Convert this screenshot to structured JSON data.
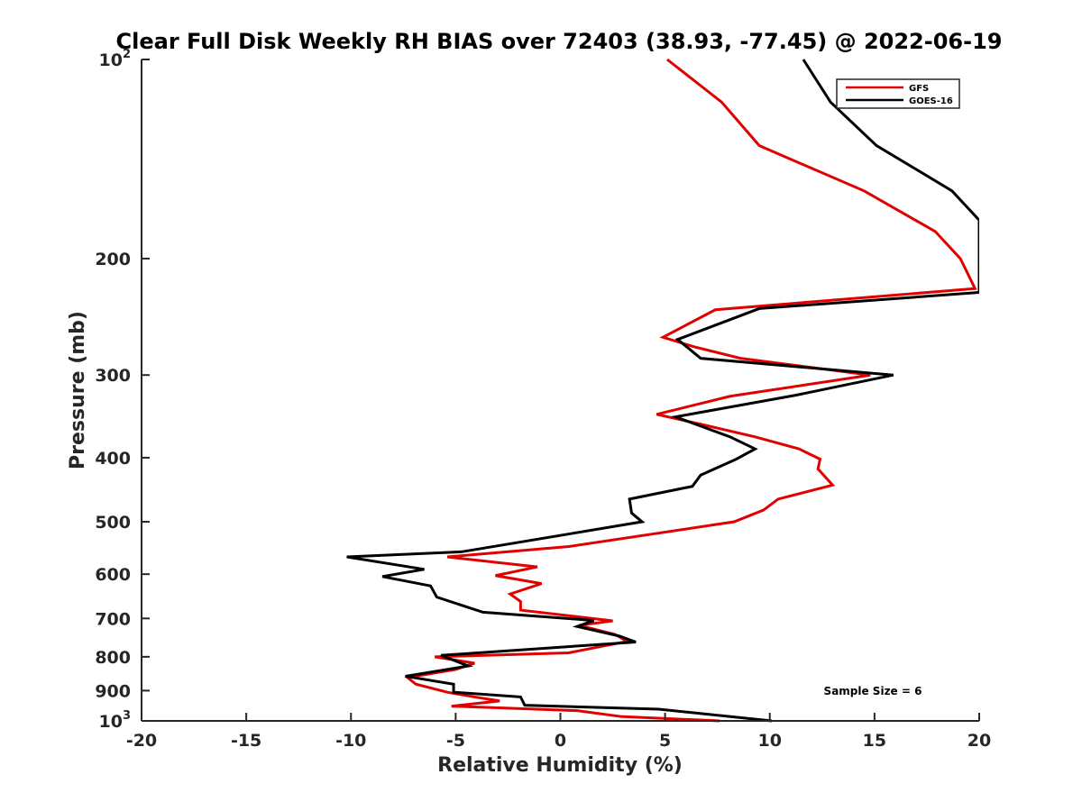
{
  "chart_data": {
    "type": "line",
    "title": "Clear Full Disk Weekly RH BIAS over 72403 (38.93, -77.45) @ 2022-06-19",
    "xlabel": "Relative Humidity (%)",
    "ylabel": "Pressure (mb)",
    "xlim": [
      -20,
      20
    ],
    "ylim": [
      1000,
      100
    ],
    "yscale": "log",
    "grid": false,
    "legend_position": "top-right",
    "x_ticks": [
      -20,
      -15,
      -10,
      -5,
      0,
      5,
      10,
      15,
      20
    ],
    "x_tick_labels": [
      "-20",
      "-15",
      "-10",
      "-5",
      "0",
      "5",
      "10",
      "15",
      "20"
    ],
    "y_ticks": [
      {
        "value": 100,
        "base": "10",
        "exp": "2"
      },
      {
        "value": 200,
        "label": "200"
      },
      {
        "value": 300,
        "label": "300"
      },
      {
        "value": 400,
        "label": "400"
      },
      {
        "value": 500,
        "label": "500"
      },
      {
        "value": 600,
        "label": "600"
      },
      {
        "value": 700,
        "label": "700"
      },
      {
        "value": 800,
        "label": "800"
      },
      {
        "value": 900,
        "label": "900"
      },
      {
        "value": 1000,
        "base": "10",
        "exp": "3"
      }
    ],
    "annotation": "Sample Size = 6",
    "series": [
      {
        "name": "GFS",
        "color": "#e00000",
        "points": [
          [
            5.1,
            100
          ],
          [
            7.7,
            116
          ],
          [
            9.5,
            135
          ],
          [
            14.5,
            158
          ],
          [
            17.9,
            182
          ],
          [
            19.1,
            200
          ],
          [
            19.8,
            222
          ],
          [
            7.4,
            239
          ],
          [
            4.9,
            263
          ],
          [
            6.4,
            272
          ],
          [
            8.6,
            283
          ],
          [
            14.8,
            300
          ],
          [
            8.1,
            323
          ],
          [
            4.6,
            344
          ],
          [
            6.7,
            356
          ],
          [
            9.3,
            372
          ],
          [
            11.4,
            388
          ],
          [
            12.4,
            402
          ],
          [
            12.3,
            416
          ],
          [
            13.0,
            440
          ],
          [
            10.4,
            462
          ],
          [
            9.7,
            480
          ],
          [
            8.3,
            500
          ],
          [
            0.4,
            545
          ],
          [
            -5.4,
            565
          ],
          [
            -1.1,
            585
          ],
          [
            -3.1,
            603
          ],
          [
            -0.9,
            620
          ],
          [
            -2.4,
            643
          ],
          [
            -1.9,
            660
          ],
          [
            -1.9,
            680
          ],
          [
            2.5,
            706
          ],
          [
            0.9,
            717
          ],
          [
            2.6,
            740
          ],
          [
            3.2,
            758
          ],
          [
            0.4,
            789
          ],
          [
            -6.0,
            800
          ],
          [
            -4.1,
            818
          ],
          [
            -5.0,
            836
          ],
          [
            -7.3,
            860
          ],
          [
            -6.9,
            880
          ],
          [
            -5.4,
            905
          ],
          [
            -4.1,
            920
          ],
          [
            -2.9,
            933
          ],
          [
            -5.2,
            950
          ],
          [
            0.8,
            965
          ],
          [
            2.9,
            985
          ],
          [
            7.6,
            1000
          ]
        ]
      },
      {
        "name": "GOES-16",
        "color": "#000000",
        "points": [
          [
            11.6,
            100
          ],
          [
            12.9,
            116
          ],
          [
            15.1,
            135
          ],
          [
            18.7,
            158
          ],
          [
            20.0,
            175
          ],
          [
            20.0,
            225
          ],
          [
            9.5,
            238
          ],
          [
            5.6,
            265
          ],
          [
            6.4,
            278
          ],
          [
            6.7,
            283
          ],
          [
            15.9,
            300
          ],
          [
            11.2,
            322
          ],
          [
            5.5,
            347
          ],
          [
            8.1,
            372
          ],
          [
            9.3,
            388
          ],
          [
            8.4,
            402
          ],
          [
            6.7,
            425
          ],
          [
            6.3,
            442
          ],
          [
            3.3,
            462
          ],
          [
            3.4,
            485
          ],
          [
            3.9,
            500
          ],
          [
            -4.7,
            555
          ],
          [
            -10.2,
            565
          ],
          [
            -6.5,
            590
          ],
          [
            -8.5,
            605
          ],
          [
            -6.2,
            625
          ],
          [
            -5.9,
            650
          ],
          [
            -3.7,
            685
          ],
          [
            1.6,
            705
          ],
          [
            0.8,
            720
          ],
          [
            2.8,
            744
          ],
          [
            3.6,
            760
          ],
          [
            -5.7,
            796
          ],
          [
            -4.4,
            826
          ],
          [
            -7.4,
            856
          ],
          [
            -5.1,
            880
          ],
          [
            -5.1,
            905
          ],
          [
            -1.9,
            920
          ],
          [
            -1.7,
            947
          ],
          [
            4.7,
            960
          ],
          [
            10.1,
            1000
          ]
        ]
      }
    ]
  }
}
